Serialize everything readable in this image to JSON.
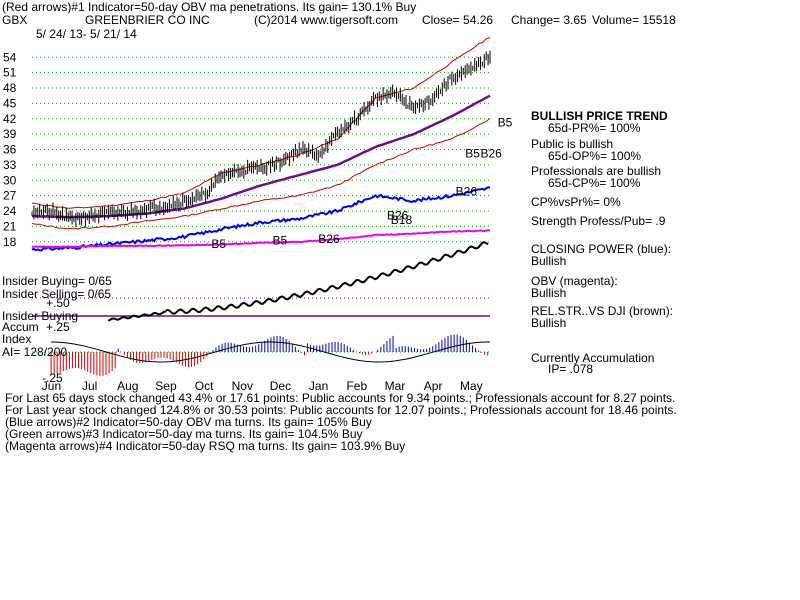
{
  "header": {
    "line1": "(Red arrows)#1 Indicator=50-day OBV ma penetrations. Its gain= 130.1% Buy",
    "symbol": "GBX",
    "company": "GREENBRIER CO INC",
    "copyright": "(C)2014 www.tigersoft.com",
    "close": "Close=  54.26",
    "change": "Change= 3.65",
    "volume": "Volume= 15518",
    "date_range": "5/ 24/ 13-  5/ 21/ 14"
  },
  "colors": {
    "price": "#000000",
    "bands": "#cc0000",
    "ma": "#6b0f8f",
    "closing_power": "#0000ee",
    "obv": "#ee00ee",
    "relstr": "#000000",
    "accum_pos": "#0000cc",
    "accum_neg": "#dd0000",
    "insider_line": "#6b0f8f",
    "grid": "#00aa00"
  },
  "chart_data": {
    "type": "line",
    "title": "GREENBRIER CO INC",
    "xlabel": "",
    "ylabel": "",
    "ylim": [
      16,
      56
    ],
    "y_ticks": [
      54,
      51,
      48,
      45,
      42,
      39,
      36,
      33,
      30,
      27,
      24,
      21,
      18
    ],
    "x_ticks": [
      "Jun",
      "Jul",
      "Aug",
      "Sep",
      "Oct",
      "Nov",
      "Dec",
      "Jan",
      "Feb",
      "Mar",
      "Apr",
      "May"
    ],
    "x_tick_time": [
      0.3,
      1.3,
      2.3,
      3.3,
      4.3,
      5.3,
      6.3,
      7.3,
      8.3,
      9.3,
      10.3,
      11.3
    ],
    "grid": true,
    "series": [
      {
        "key": "price",
        "x": [
          0,
          0.5,
          1,
          1.5,
          2,
          2.5,
          3,
          3.5,
          4,
          4.5,
          5,
          5.5,
          6,
          6.5,
          7,
          7.5,
          8,
          8.5,
          9,
          9.5,
          10,
          10.5,
          11,
          11.5,
          12
        ],
        "values": [
          24,
          23.8,
          22.5,
          23,
          23.5,
          23.8,
          24.5,
          25,
          26,
          27,
          31,
          32,
          32.5,
          33.5,
          36,
          35,
          39,
          42,
          46,
          47,
          44,
          46,
          50,
          51.5,
          54.26
        ]
      },
      {
        "key": "upper_band",
        "x": [
          0,
          1,
          2,
          3,
          4,
          5,
          6,
          7,
          8,
          9,
          10,
          11,
          12
        ],
        "values": [
          25.5,
          24.5,
          25,
          26,
          27.5,
          31.5,
          33,
          35,
          38,
          46,
          48,
          53,
          58
        ]
      },
      {
        "key": "lower_band",
        "x": [
          0,
          1,
          2,
          3,
          4,
          5,
          6,
          7,
          8,
          9,
          10,
          11,
          12
        ],
        "values": [
          21.5,
          20.5,
          21,
          22,
          23,
          24.5,
          26,
          27,
          29,
          33,
          36,
          38,
          42
        ]
      },
      {
        "key": "ma50",
        "x": [
          0,
          1,
          2,
          3,
          4,
          5,
          6,
          7,
          8,
          9,
          10,
          11,
          12
        ],
        "values": [
          23,
          22.8,
          23,
          23.5,
          24.5,
          26.5,
          29,
          31,
          33,
          36.5,
          39,
          42.5,
          46.5
        ]
      },
      {
        "key": "closing_power",
        "x": [
          0,
          1,
          2,
          3,
          4,
          5,
          6,
          7,
          8,
          9,
          10,
          11,
          12
        ],
        "values": [
          16.5,
          16.8,
          17.5,
          18.2,
          19,
          20.5,
          21.8,
          22.5,
          24,
          27,
          26,
          27,
          28.5
        ]
      },
      {
        "key": "obv",
        "x": [
          0,
          1,
          2,
          3,
          4,
          5,
          6,
          7,
          8,
          9,
          10,
          11,
          12
        ],
        "values": [
          17,
          17,
          17.2,
          17.2,
          17.3,
          17.5,
          17.8,
          18,
          18.5,
          19.3,
          19.6,
          20,
          20.2
        ]
      }
    ]
  },
  "signals": [
    {
      "label": "B5",
      "x": 4.7,
      "y": 16.8
    },
    {
      "label": "B5",
      "x": 6.3,
      "y": 17.5
    },
    {
      "label": "B26",
      "x": 7.5,
      "y": 17.8
    },
    {
      "label": "B26",
      "x": 9.3,
      "y": 22.3
    },
    {
      "label": "B18",
      "x": 9.4,
      "y": 21.5
    },
    {
      "label": "B26",
      "x": 11.1,
      "y": 27
    },
    {
      "label": "B5",
      "x": 11.35,
      "y": 34.4
    },
    {
      "label": "B26",
      "x": 11.75,
      "y": 34.4
    },
    {
      "label": "B5",
      "x": 12.2,
      "y": 40.5
    }
  ],
  "right_panel": {
    "trend_title": "BULLISH PRICE TREND",
    "pr": "65d-PR%= 100%",
    "public_title": "Public is bullish",
    "op": "65d-OP%= 100%",
    "pros_title": "Professionals are bullish",
    "cp": "65d-CP%= 100%",
    "cpvspr": "CP%vsPr%=  0%",
    "strength": "Strength Profess/Pub= .9",
    "closing_power": "CLOSING POWER (blue):",
    "closing_power_value": "Bullish",
    "obv": "OBV (magenta):",
    "obv_value": "Bullish",
    "relstr": "REL.STR..VS DJI (brown):",
    "relstr_value": "Bullish",
    "accum": "Currently Accumulation",
    "ip": "IP=  .078"
  },
  "left_labels": {
    "insider_buying": "Insider Buying= 0/65",
    "insider_selling": "Insider Selling= 0/65",
    "insider_buying2": "Insider Buying",
    "plus50": "+.50",
    "accum": "Accum",
    "plus25": "+.25",
    "index": "Index",
    "ai": "AI= 128/200",
    "minus25": "-.25"
  },
  "footer": {
    "line1": "For Last 65 days stock changed  43.4% or  17.61 points:  Public accounts for  9.34 points.;  Professionals account for  8.27 points.",
    "line2": "For Last year stock changed  124.8% or  30.53 points:  Public accounts for  12.07 points.;  Professionals account for  18.46 points.",
    "line3": "(Blue arrows)#2 Indicator=50-day OBV ma turns. Its gain= 105% Buy",
    "line4": "(Green arrows)#3 Indicator=50-day ma turns. Its gain= 104.5% Buy",
    "line5": "(Magenta arrows)#4 Indicator=50-day RSQ ma turns. Its gain= 103.9% Buy"
  }
}
